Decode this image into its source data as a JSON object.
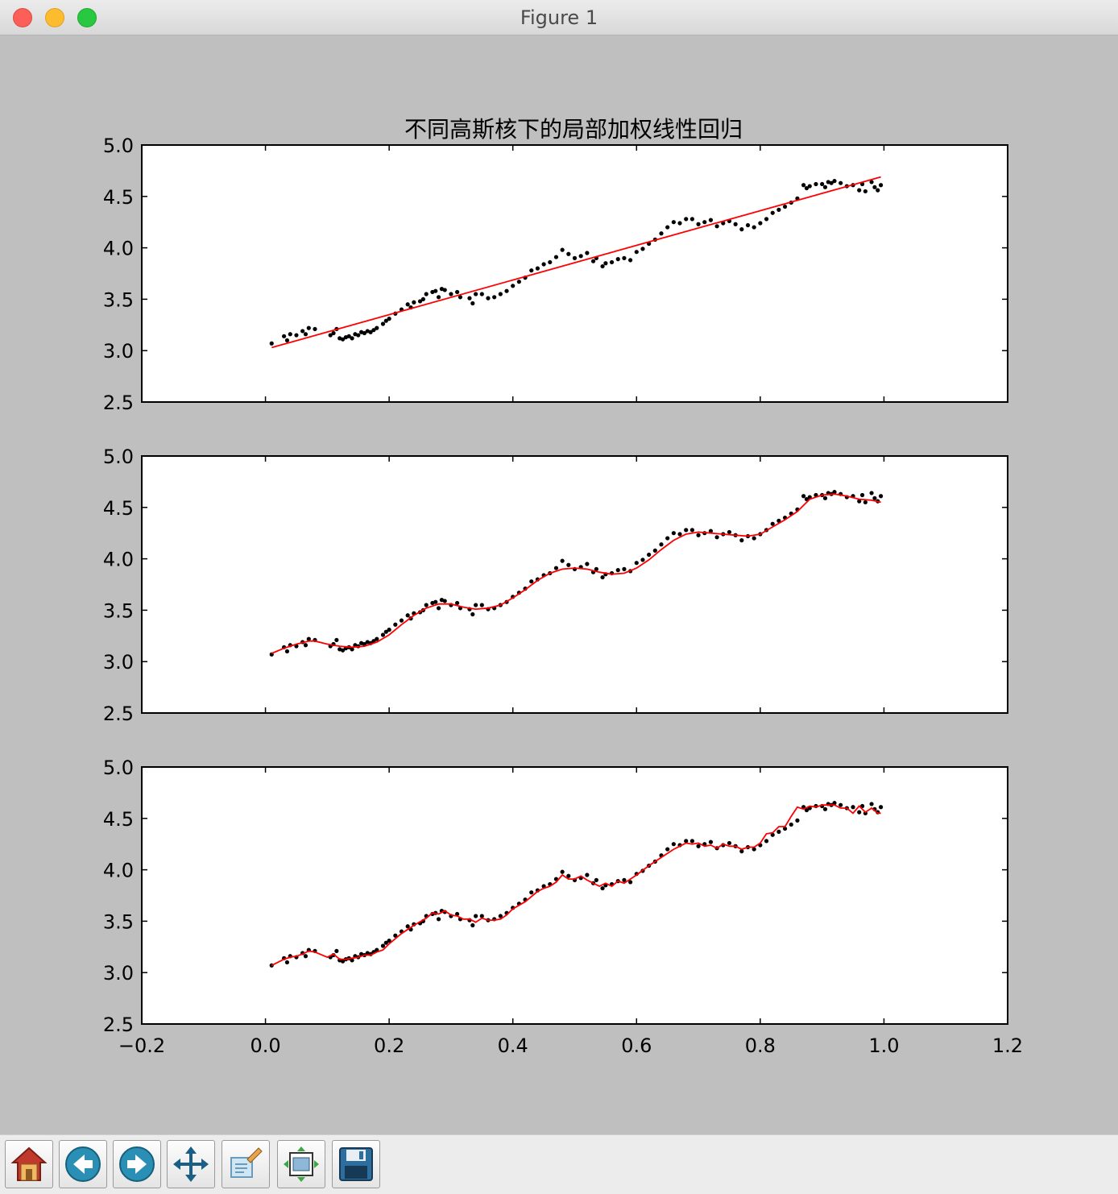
{
  "window": {
    "title": "Figure 1"
  },
  "toolbar": {
    "buttons": [
      {
        "icon": "home-icon"
      },
      {
        "icon": "back-arrow-icon"
      },
      {
        "icon": "forward-arrow-icon"
      },
      {
        "icon": "pan-icon"
      },
      {
        "icon": "zoom-rect-icon"
      },
      {
        "icon": "subplots-config-icon"
      },
      {
        "icon": "save-disk-icon"
      }
    ]
  },
  "colors": {
    "fit_line": "#ff0000",
    "points": "#000000",
    "figure_bg": "#bfbfbf",
    "axes_bg": "#ffffff"
  },
  "chart_data": [
    {
      "type": "scatter",
      "title": "不同高斯核下的局部加权线性回归",
      "xlim": [
        -0.2,
        1.2
      ],
      "ylim": [
        2.5,
        5.0
      ],
      "yticks": [
        "2.5",
        "3.0",
        "3.5",
        "4.0",
        "4.5",
        "5.0"
      ],
      "xticks": [],
      "series": [
        {
          "type": "scatter",
          "x": [
            0.01,
            0.03,
            0.035,
            0.04,
            0.05,
            0.06,
            0.065,
            0.07,
            0.08,
            0.105,
            0.11,
            0.115,
            0.12,
            0.125,
            0.13,
            0.135,
            0.14,
            0.145,
            0.15,
            0.155,
            0.16,
            0.165,
            0.17,
            0.175,
            0.18,
            0.19,
            0.195,
            0.2,
            0.21,
            0.22,
            0.23,
            0.235,
            0.24,
            0.25,
            0.255,
            0.26,
            0.27,
            0.275,
            0.28,
            0.285,
            0.29,
            0.3,
            0.31,
            0.315,
            0.33,
            0.335,
            0.34,
            0.35,
            0.36,
            0.37,
            0.38,
            0.39,
            0.4,
            0.41,
            0.42,
            0.43,
            0.44,
            0.45,
            0.46,
            0.47,
            0.48,
            0.49,
            0.5,
            0.51,
            0.52,
            0.53,
            0.535,
            0.545,
            0.55,
            0.56,
            0.57,
            0.58,
            0.59,
            0.6,
            0.61,
            0.62,
            0.63,
            0.64,
            0.65,
            0.66,
            0.67,
            0.68,
            0.69,
            0.7,
            0.71,
            0.72,
            0.73,
            0.74,
            0.75,
            0.76,
            0.77,
            0.78,
            0.79,
            0.8,
            0.81,
            0.82,
            0.83,
            0.84,
            0.85,
            0.86,
            0.87,
            0.875,
            0.88,
            0.89,
            0.9,
            0.905,
            0.91,
            0.915,
            0.92,
            0.93,
            0.94,
            0.95,
            0.96,
            0.965,
            0.97,
            0.98,
            0.985,
            0.99,
            0.995
          ],
          "y": [
            3.07,
            3.14,
            3.1,
            3.16,
            3.15,
            3.19,
            3.16,
            3.22,
            3.21,
            3.15,
            3.17,
            3.21,
            3.12,
            3.11,
            3.13,
            3.14,
            3.12,
            3.16,
            3.15,
            3.18,
            3.17,
            3.19,
            3.18,
            3.2,
            3.22,
            3.26,
            3.29,
            3.31,
            3.36,
            3.4,
            3.45,
            3.42,
            3.47,
            3.48,
            3.5,
            3.55,
            3.57,
            3.58,
            3.52,
            3.6,
            3.59,
            3.55,
            3.57,
            3.52,
            3.51,
            3.46,
            3.55,
            3.55,
            3.51,
            3.52,
            3.55,
            3.58,
            3.63,
            3.67,
            3.71,
            3.78,
            3.8,
            3.84,
            3.86,
            3.91,
            3.98,
            3.94,
            3.9,
            3.92,
            3.95,
            3.87,
            3.9,
            3.82,
            3.85,
            3.86,
            3.89,
            3.9,
            3.88,
            3.96,
            3.99,
            4.04,
            4.08,
            4.14,
            4.2,
            4.25,
            4.24,
            4.28,
            4.28,
            4.23,
            4.25,
            4.27,
            4.21,
            4.24,
            4.26,
            4.23,
            4.18,
            4.22,
            4.2,
            4.24,
            4.28,
            4.34,
            4.37,
            4.4,
            4.44,
            4.48,
            4.61,
            4.58,
            4.6,
            4.62,
            4.62,
            4.59,
            4.64,
            4.63,
            4.65,
            4.63,
            4.6,
            4.61,
            4.56,
            4.62,
            4.55,
            4.64,
            4.59,
            4.56,
            4.61
          ]
        },
        {
          "type": "line",
          "x": [
            0.01,
            0.995
          ],
          "y": [
            3.03,
            4.69
          ]
        }
      ]
    },
    {
      "type": "scatter",
      "xlim": [
        -0.2,
        1.2
      ],
      "ylim": [
        2.5,
        5.0
      ],
      "yticks": [
        "2.5",
        "3.0",
        "3.5",
        "4.0",
        "4.5",
        "5.0"
      ],
      "xticks": [],
      "series": [
        {
          "type": "scatter",
          "same_points_as": 0
        },
        {
          "type": "line",
          "x": [
            0.01,
            0.03,
            0.05,
            0.07,
            0.08,
            0.1,
            0.12,
            0.14,
            0.16,
            0.18,
            0.2,
            0.22,
            0.24,
            0.26,
            0.28,
            0.3,
            0.32,
            0.34,
            0.36,
            0.38,
            0.4,
            0.42,
            0.44,
            0.46,
            0.48,
            0.5,
            0.52,
            0.54,
            0.56,
            0.58,
            0.6,
            0.62,
            0.64,
            0.66,
            0.68,
            0.7,
            0.72,
            0.74,
            0.76,
            0.78,
            0.8,
            0.82,
            0.84,
            0.86,
            0.88,
            0.9,
            0.92,
            0.94,
            0.96,
            0.98,
            0.995
          ],
          "y": [
            3.08,
            3.13,
            3.17,
            3.2,
            3.2,
            3.17,
            3.15,
            3.14,
            3.15,
            3.19,
            3.26,
            3.36,
            3.45,
            3.52,
            3.56,
            3.56,
            3.53,
            3.51,
            3.52,
            3.55,
            3.62,
            3.7,
            3.79,
            3.86,
            3.9,
            3.91,
            3.9,
            3.87,
            3.85,
            3.86,
            3.91,
            3.99,
            4.09,
            4.18,
            4.24,
            4.26,
            4.25,
            4.24,
            4.23,
            4.22,
            4.24,
            4.31,
            4.38,
            4.46,
            4.58,
            4.62,
            4.63,
            4.61,
            4.58,
            4.57,
            4.55
          ]
        }
      ]
    },
    {
      "type": "scatter",
      "xlim": [
        -0.2,
        1.2
      ],
      "ylim": [
        2.5,
        5.0
      ],
      "yticks": [
        "2.5",
        "3.0",
        "3.5",
        "4.0",
        "4.5",
        "5.0"
      ],
      "xticks": [
        "−0.2",
        "0.0",
        "0.2",
        "0.4",
        "0.6",
        "0.8",
        "1.0",
        "1.2"
      ],
      "series": [
        {
          "type": "scatter",
          "same_points_as": 0
        },
        {
          "type": "line",
          "x": [
            0.01,
            0.03,
            0.04,
            0.05,
            0.06,
            0.07,
            0.08,
            0.1,
            0.11,
            0.12,
            0.13,
            0.14,
            0.15,
            0.16,
            0.17,
            0.18,
            0.19,
            0.2,
            0.22,
            0.24,
            0.26,
            0.27,
            0.28,
            0.29,
            0.3,
            0.31,
            0.32,
            0.33,
            0.34,
            0.35,
            0.36,
            0.37,
            0.38,
            0.39,
            0.4,
            0.42,
            0.44,
            0.45,
            0.46,
            0.47,
            0.48,
            0.49,
            0.5,
            0.51,
            0.52,
            0.53,
            0.54,
            0.55,
            0.56,
            0.57,
            0.58,
            0.59,
            0.6,
            0.62,
            0.64,
            0.66,
            0.67,
            0.68,
            0.69,
            0.7,
            0.71,
            0.72,
            0.73,
            0.74,
            0.75,
            0.76,
            0.77,
            0.78,
            0.79,
            0.8,
            0.81,
            0.82,
            0.83,
            0.84,
            0.85,
            0.86,
            0.87,
            0.88,
            0.89,
            0.9,
            0.91,
            0.92,
            0.93,
            0.94,
            0.95,
            0.96,
            0.97,
            0.98,
            0.99,
            0.995
          ],
          "y": [
            3.07,
            3.13,
            3.15,
            3.16,
            3.18,
            3.21,
            3.2,
            3.15,
            3.18,
            3.13,
            3.13,
            3.14,
            3.15,
            3.17,
            3.17,
            3.2,
            3.22,
            3.28,
            3.38,
            3.46,
            3.53,
            3.58,
            3.57,
            3.6,
            3.56,
            3.55,
            3.52,
            3.52,
            3.49,
            3.53,
            3.51,
            3.51,
            3.52,
            3.56,
            3.62,
            3.69,
            3.79,
            3.82,
            3.84,
            3.88,
            3.95,
            3.91,
            3.91,
            3.94,
            3.9,
            3.87,
            3.84,
            3.87,
            3.84,
            3.89,
            3.87,
            3.91,
            3.95,
            4.04,
            4.12,
            4.2,
            4.23,
            4.26,
            4.25,
            4.26,
            4.23,
            4.24,
            4.21,
            4.25,
            4.23,
            4.23,
            4.2,
            4.22,
            4.22,
            4.26,
            4.35,
            4.36,
            4.42,
            4.42,
            4.52,
            4.61,
            4.59,
            4.62,
            4.61,
            4.63,
            4.63,
            4.63,
            4.6,
            4.6,
            4.55,
            4.62,
            4.56,
            4.6,
            4.55,
            4.55
          ]
        }
      ]
    }
  ]
}
